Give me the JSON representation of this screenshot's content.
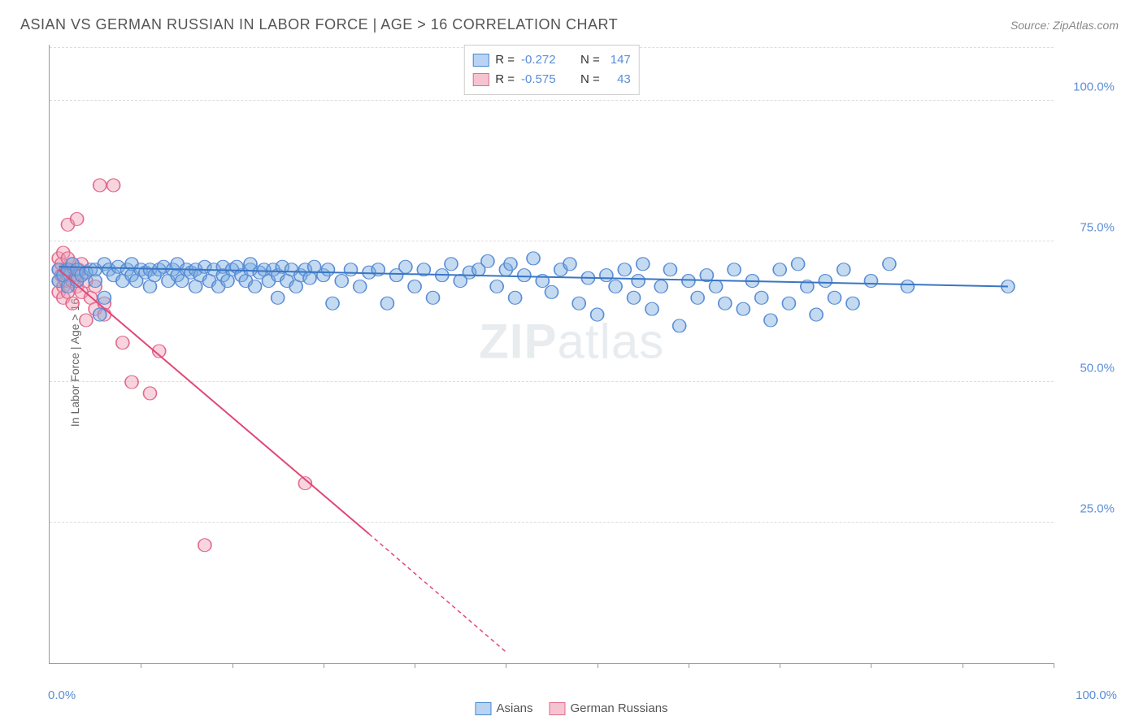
{
  "header": {
    "title": "ASIAN VS GERMAN RUSSIAN IN LABOR FORCE | AGE > 16 CORRELATION CHART",
    "source": "Source: ZipAtlas.com"
  },
  "watermark": {
    "zip": "ZIP",
    "atlas": "atlas"
  },
  "chart": {
    "type": "scatter",
    "ylabel": "In Labor Force | Age > 16",
    "xlim": [
      0,
      110
    ],
    "ylim": [
      0,
      110
    ],
    "grid_color": "#dddddd",
    "background_color": "#ffffff",
    "ytick_labels": [
      "25.0%",
      "50.0%",
      "75.0%",
      "100.0%"
    ],
    "ytick_positions": [
      25,
      50,
      75,
      100
    ],
    "x_left_label": "0.0%",
    "x_right_label": "100.0%",
    "tick_fontsize": 15,
    "label_fontsize": 14,
    "tick_color": "#5b8dd6",
    "axis_color": "#999999"
  },
  "legend_top": {
    "rows": [
      {
        "swatch_fill": "#b9d4f2",
        "swatch_border": "#4a86d0",
        "r": "-0.272",
        "n": "147"
      },
      {
        "swatch_fill": "#f6c4d1",
        "swatch_border": "#e26b8b",
        "r": "-0.575",
        "n": "43"
      }
    ],
    "r_prefix": "R =",
    "n_prefix": "N ="
  },
  "legend_bottom": {
    "items": [
      {
        "swatch_fill": "#b9d4f2",
        "swatch_border": "#4a86d0",
        "label": "Asians"
      },
      {
        "swatch_fill": "#f6c4d1",
        "swatch_border": "#e26b8b",
        "label": "German Russians"
      }
    ]
  },
  "series": {
    "asians": {
      "color_fill": "rgba(122,172,224,0.45)",
      "color_stroke": "#5b8dd6",
      "marker_r": 8,
      "trend": {
        "x1": 1,
        "y1": 70.5,
        "x2": 105,
        "y2": 67,
        "stroke": "#3a76c4",
        "width": 2
      },
      "points": [
        [
          1,
          68
        ],
        [
          1,
          70
        ],
        [
          1.5,
          69
        ],
        [
          2,
          70
        ],
        [
          2,
          67
        ],
        [
          2.5,
          71
        ],
        [
          3,
          68
        ],
        [
          3,
          70
        ],
        [
          3.5,
          69
        ],
        [
          4,
          69.5
        ],
        [
          4.5,
          70
        ],
        [
          5,
          68
        ],
        [
          5,
          70
        ],
        [
          5.5,
          62
        ],
        [
          6,
          71
        ],
        [
          6,
          65
        ],
        [
          6.5,
          70
        ],
        [
          7,
          69
        ],
        [
          7.5,
          70.5
        ],
        [
          8,
          68
        ],
        [
          8.5,
          70
        ],
        [
          9,
          69
        ],
        [
          9,
          71
        ],
        [
          9.5,
          68
        ],
        [
          10,
          70
        ],
        [
          10.5,
          69.5
        ],
        [
          11,
          70
        ],
        [
          11,
          67
        ],
        [
          11.5,
          69
        ],
        [
          12,
          70
        ],
        [
          12.5,
          70.5
        ],
        [
          13,
          68
        ],
        [
          13.5,
          70
        ],
        [
          14,
          69
        ],
        [
          14,
          71
        ],
        [
          14.5,
          68
        ],
        [
          15,
          70
        ],
        [
          15.5,
          69.5
        ],
        [
          16,
          67
        ],
        [
          16,
          70
        ],
        [
          16.5,
          69
        ],
        [
          17,
          70.5
        ],
        [
          17.5,
          68
        ],
        [
          18,
          70
        ],
        [
          18.5,
          67
        ],
        [
          19,
          69
        ],
        [
          19,
          70.5
        ],
        [
          19.5,
          68
        ],
        [
          20,
          70
        ],
        [
          20.5,
          70.5
        ],
        [
          21,
          69
        ],
        [
          21.5,
          68
        ],
        [
          22,
          70
        ],
        [
          22,
          71
        ],
        [
          22.5,
          67
        ],
        [
          23,
          69.5
        ],
        [
          23.5,
          70
        ],
        [
          24,
          68
        ],
        [
          24.5,
          70
        ],
        [
          25,
          69
        ],
        [
          25,
          65
        ],
        [
          25.5,
          70.5
        ],
        [
          26,
          68
        ],
        [
          26.5,
          70
        ],
        [
          27,
          67
        ],
        [
          27.5,
          69
        ],
        [
          28,
          70
        ],
        [
          28.5,
          68.5
        ],
        [
          29,
          70.5
        ],
        [
          30,
          69
        ],
        [
          30.5,
          70
        ],
        [
          31,
          64
        ],
        [
          32,
          68
        ],
        [
          33,
          70
        ],
        [
          34,
          67
        ],
        [
          35,
          69.5
        ],
        [
          36,
          70
        ],
        [
          37,
          64
        ],
        [
          38,
          69
        ],
        [
          39,
          70.5
        ],
        [
          40,
          67
        ],
        [
          41,
          70
        ],
        [
          42,
          65
        ],
        [
          43,
          69
        ],
        [
          44,
          71
        ],
        [
          45,
          68
        ],
        [
          46,
          69.5
        ],
        [
          47,
          70
        ],
        [
          48,
          71.5
        ],
        [
          49,
          67
        ],
        [
          50,
          70
        ],
        [
          50.5,
          71
        ],
        [
          51,
          65
        ],
        [
          52,
          69
        ],
        [
          53,
          72
        ],
        [
          54,
          68
        ],
        [
          55,
          66
        ],
        [
          56,
          70
        ],
        [
          57,
          71
        ],
        [
          58,
          64
        ],
        [
          59,
          68.5
        ],
        [
          60,
          62
        ],
        [
          61,
          69
        ],
        [
          62,
          67
        ],
        [
          63,
          70
        ],
        [
          64,
          65
        ],
        [
          64.5,
          68
        ],
        [
          65,
          71
        ],
        [
          66,
          63
        ],
        [
          67,
          67
        ],
        [
          68,
          70
        ],
        [
          69,
          60
        ],
        [
          70,
          68
        ],
        [
          71,
          65
        ],
        [
          72,
          69
        ],
        [
          73,
          67
        ],
        [
          74,
          64
        ],
        [
          75,
          70
        ],
        [
          76,
          63
        ],
        [
          77,
          68
        ],
        [
          78,
          65
        ],
        [
          79,
          61
        ],
        [
          80,
          70
        ],
        [
          81,
          64
        ],
        [
          82,
          71
        ],
        [
          83,
          67
        ],
        [
          84,
          62
        ],
        [
          85,
          68
        ],
        [
          86,
          65
        ],
        [
          87,
          70
        ],
        [
          88,
          64
        ],
        [
          90,
          68
        ],
        [
          92,
          71
        ],
        [
          94,
          67
        ],
        [
          105,
          67
        ]
      ]
    },
    "german_russians": {
      "color_fill": "rgba(240,160,185,0.45)",
      "color_stroke": "#e26b8b",
      "marker_r": 8,
      "trend_solid": {
        "x1": 1,
        "y1": 70,
        "x2": 35,
        "y2": 23,
        "stroke": "#e04877",
        "width": 2
      },
      "trend_dashed": {
        "x1": 35,
        "y1": 23,
        "x2": 50,
        "y2": 2,
        "stroke": "#e04877",
        "width": 1.5,
        "dash": "5,4"
      },
      "points": [
        [
          1,
          72
        ],
        [
          1,
          70
        ],
        [
          1,
          68
        ],
        [
          1,
          66
        ],
        [
          1.3,
          71
        ],
        [
          1.3,
          69
        ],
        [
          1.5,
          73
        ],
        [
          1.5,
          67
        ],
        [
          1.5,
          65
        ],
        [
          1.8,
          70
        ],
        [
          1.8,
          68
        ],
        [
          2,
          72
        ],
        [
          2,
          69
        ],
        [
          2,
          66
        ],
        [
          2,
          78
        ],
        [
          2.2,
          70
        ],
        [
          2.5,
          68
        ],
        [
          2.5,
          71
        ],
        [
          2.5,
          64
        ],
        [
          3,
          69
        ],
        [
          3,
          67
        ],
        [
          3,
          79
        ],
        [
          3.2,
          70
        ],
        [
          3.5,
          66
        ],
        [
          3.5,
          71
        ],
        [
          4,
          61
        ],
        [
          4,
          68
        ],
        [
          4.5,
          65
        ],
        [
          5,
          67
        ],
        [
          5,
          63
        ],
        [
          5.5,
          85
        ],
        [
          6,
          64
        ],
        [
          6,
          62
        ],
        [
          7,
          85
        ],
        [
          8,
          57
        ],
        [
          9,
          50
        ],
        [
          11,
          48
        ],
        [
          12,
          55.5
        ],
        [
          17,
          21
        ],
        [
          28,
          32
        ]
      ]
    }
  }
}
